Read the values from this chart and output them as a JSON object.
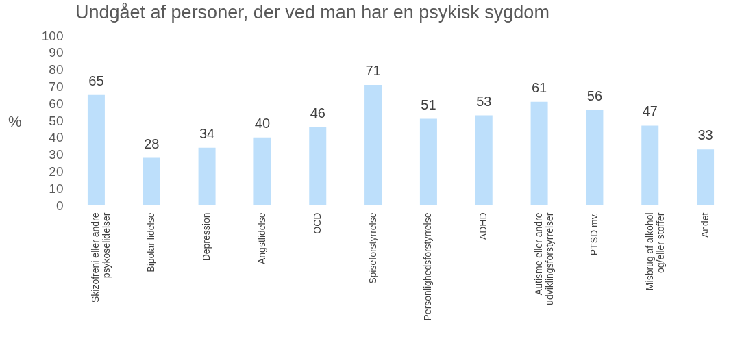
{
  "chart_data": {
    "type": "bar",
    "title": "Undgået af personer, der ved man har en psykisk sygdom",
    "ylabel": "%",
    "categories": [
      "Skizofreni eller andre psykoselidelser",
      "Bipolar lidelse",
      "Depression",
      "Angstlidelse",
      "OCD",
      "Spiseforstyrrelse",
      "Personlighedsforstyrrelse",
      "ADHD",
      "Autisme eller andre udviklingsforstyrrelser",
      "PTSD mv.",
      "Misbrug af alkohol og/eller stoffer",
      "Andet"
    ],
    "values": [
      65,
      28,
      34,
      40,
      46,
      71,
      51,
      53,
      61,
      56,
      47,
      33
    ],
    "color": "#bddffb",
    "ylim": [
      0,
      100
    ],
    "yticks": [
      0,
      10,
      20,
      30,
      40,
      50,
      60,
      70,
      80,
      90,
      100
    ],
    "grid": false,
    "data_labels": true
  }
}
